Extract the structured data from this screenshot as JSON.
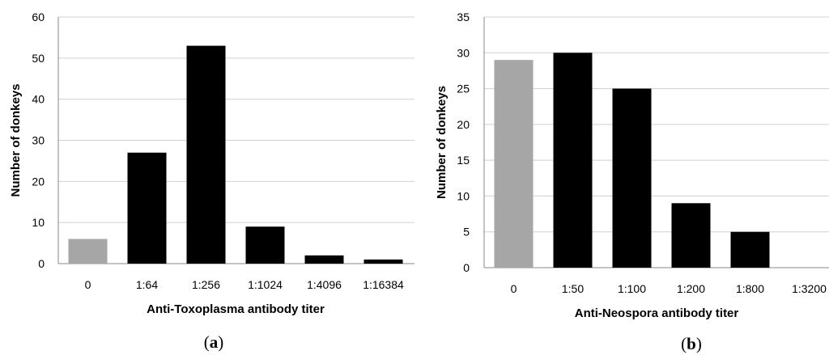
{
  "chart_data": [
    {
      "type": "bar",
      "panel_label": "(a)",
      "categories": [
        "0",
        "1:64",
        "1:256",
        "1:1024",
        "1:4096",
        "1:16384"
      ],
      "values": [
        6,
        27,
        53,
        9,
        2,
        1
      ],
      "bar_colors": [
        "#a6a6a6",
        "#000000",
        "#000000",
        "#000000",
        "#000000",
        "#000000"
      ],
      "xlabel": "Anti-Toxoplasma antibody titer",
      "ylabel": "Number of donkeys",
      "ylim": [
        0,
        60
      ],
      "yticks": [
        "0",
        "10",
        "20",
        "30",
        "40",
        "50",
        "60"
      ],
      "grid": true,
      "legend": "none"
    },
    {
      "type": "bar",
      "panel_label": "(b)",
      "categories": [
        "0",
        "1:50",
        "1:100",
        "1:200",
        "1:800",
        "1:3200"
      ],
      "values": [
        29,
        30,
        25,
        9,
        5,
        0
      ],
      "bar_colors": [
        "#a6a6a6",
        "#000000",
        "#000000",
        "#000000",
        "#000000",
        "#000000"
      ],
      "xlabel": "Anti-Neospora antibody titer",
      "ylabel": "Number of donkeys",
      "ylim": [
        0,
        35
      ],
      "yticks": [
        "0",
        "5",
        "10",
        "15",
        "20",
        "25",
        "30",
        "35"
      ],
      "grid": true,
      "legend": "none"
    }
  ]
}
